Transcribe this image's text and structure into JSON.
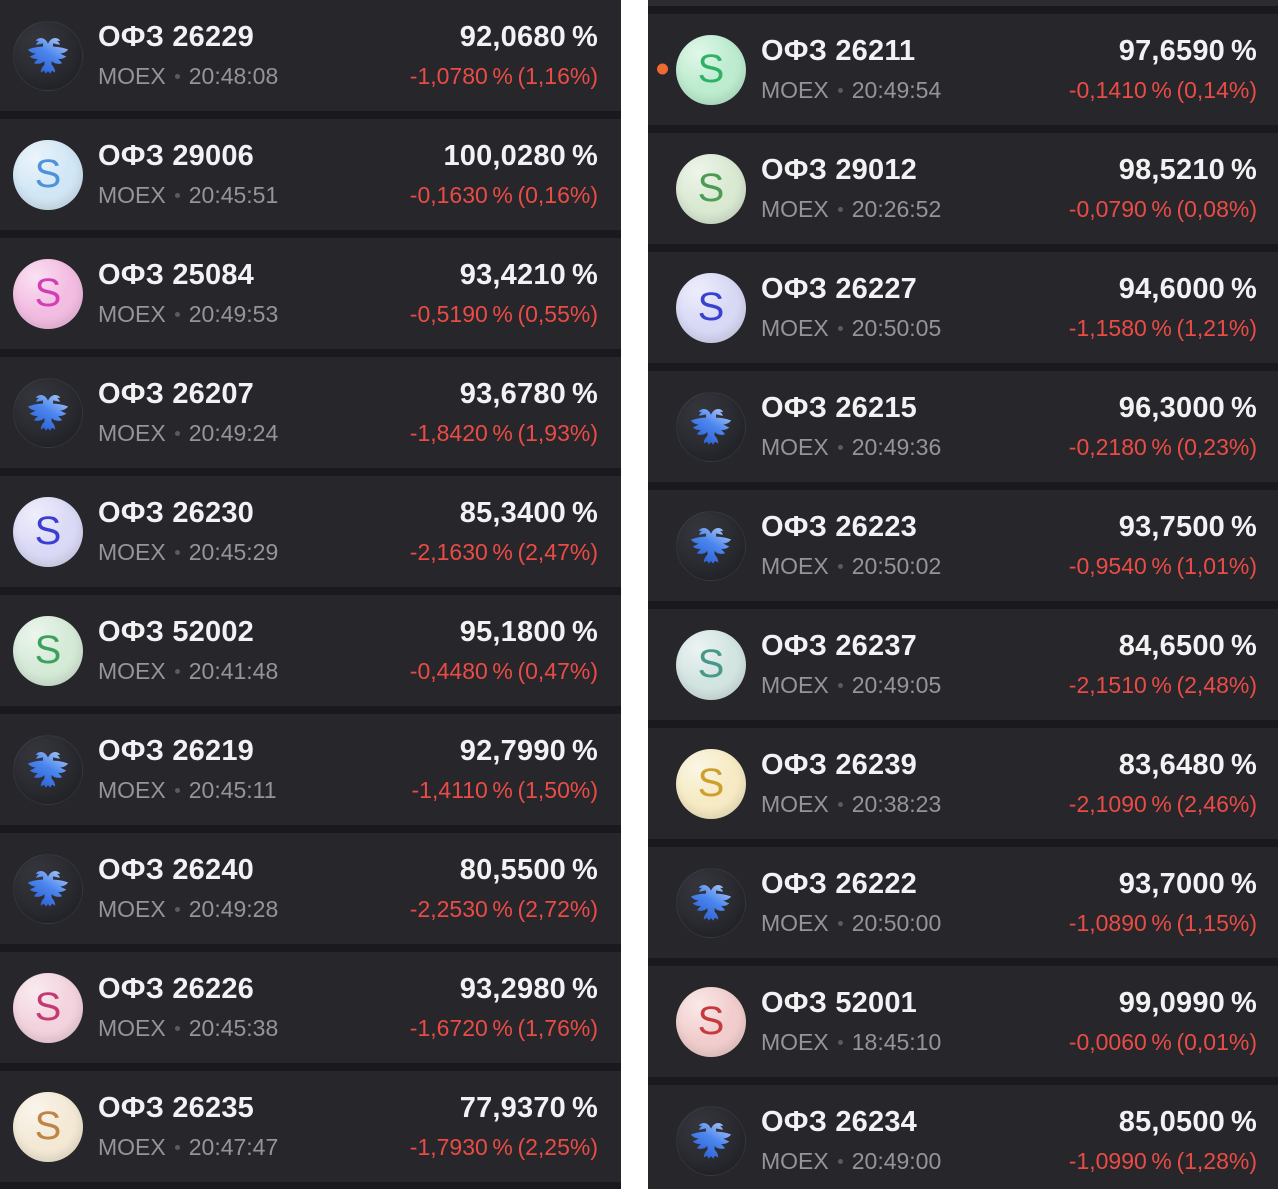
{
  "ui": {
    "colors": {
      "divider": "#ffffff",
      "column-bg": "#1a1a1e",
      "row-bg": "#26262b",
      "title": "#f2f2f4",
      "subtitle": "#94949a",
      "price": "#f2f2f4",
      "change": "#ea4c45",
      "unread-dot": "#ed6a31"
    },
    "eagle_gradient": [
      "#2a5bd0",
      "#4b86ee",
      "#a9c6f9"
    ]
  },
  "columns": [
    {
      "side": "left",
      "top_sliver": false,
      "rows": [
        {
          "ticker": "ОФЗ 26229",
          "exchange": "MOEX",
          "time": "20:48:08",
          "price": "92,0680 %",
          "change": "-1,0780 % (1,16%)",
          "icon": {
            "type": "eagle"
          },
          "unread": false
        },
        {
          "ticker": "ОФЗ 29006",
          "exchange": "MOEX",
          "time": "20:45:51",
          "price": "100,0280 %",
          "change": "-0,1630 % (0,16%)",
          "icon": {
            "type": "letter",
            "letter": "S",
            "bg": "#d2e7f5",
            "fg": "#4e93d9"
          },
          "unread": false
        },
        {
          "ticker": "ОФЗ 25084",
          "exchange": "MOEX",
          "time": "20:49:53",
          "price": "93,4210 %",
          "change": "-0,5190 % (0,55%)",
          "icon": {
            "type": "letter",
            "letter": "S",
            "bg": "#f3bde2",
            "fg": "#d13eb5"
          },
          "unread": false
        },
        {
          "ticker": "ОФЗ 26207",
          "exchange": "MOEX",
          "time": "20:49:24",
          "price": "93,6780 %",
          "change": "-1,8420 % (1,93%)",
          "icon": {
            "type": "eagle"
          },
          "unread": false
        },
        {
          "ticker": "ОФЗ 26230",
          "exchange": "MOEX",
          "time": "20:45:29",
          "price": "85,3400 %",
          "change": "-2,1630 % (2,47%)",
          "icon": {
            "type": "letter",
            "letter": "S",
            "bg": "#dbdaf6",
            "fg": "#3a3fd1"
          },
          "unread": false
        },
        {
          "ticker": "ОФЗ 52002",
          "exchange": "MOEX",
          "time": "20:41:48",
          "price": "95,1800 %",
          "change": "-0,4480 % (0,47%)",
          "icon": {
            "type": "letter",
            "letter": "S",
            "bg": "#d5ead7",
            "fg": "#3ba25d"
          },
          "unread": false
        },
        {
          "ticker": "ОФЗ 26219",
          "exchange": "MOEX",
          "time": "20:45:11",
          "price": "92,7990 %",
          "change": "-1,4110 % (1,50%)",
          "icon": {
            "type": "eagle"
          },
          "unread": false
        },
        {
          "ticker": "ОФЗ 26240",
          "exchange": "MOEX",
          "time": "20:49:28",
          "price": "80,5500 %",
          "change": "-2,2530 % (2,72%)",
          "icon": {
            "type": "eagle"
          },
          "unread": false
        },
        {
          "ticker": "ОФЗ 26226",
          "exchange": "MOEX",
          "time": "20:45:38",
          "price": "93,2980 %",
          "change": "-1,6720 % (1,76%)",
          "icon": {
            "type": "letter",
            "letter": "S",
            "bg": "#f3d3de",
            "fg": "#c33a72"
          },
          "unread": false
        },
        {
          "ticker": "ОФЗ 26235",
          "exchange": "MOEX",
          "time": "20:47:47",
          "price": "77,9370 %",
          "change": "-1,7930 % (2,25%)",
          "icon": {
            "type": "letter",
            "letter": "S",
            "bg": "#f3e9d5",
            "fg": "#c08445"
          },
          "unread": false
        }
      ]
    },
    {
      "side": "right",
      "top_sliver": true,
      "rows": [
        {
          "ticker": "ОФЗ 26211",
          "exchange": "MOEX",
          "time": "20:49:54",
          "price": "97,6590 %",
          "change": "-0,1410 % (0,14%)",
          "icon": {
            "type": "letter",
            "letter": "S",
            "bg": "#bdeccf",
            "fg": "#2fb268"
          },
          "unread": true
        },
        {
          "ticker": "ОФЗ 29012",
          "exchange": "MOEX",
          "time": "20:26:52",
          "price": "98,5210 %",
          "change": "-0,0790 % (0,08%)",
          "icon": {
            "type": "letter",
            "letter": "S",
            "bg": "#d9e9d2",
            "fg": "#4c9c53"
          },
          "unread": false
        },
        {
          "ticker": "ОФЗ 26227",
          "exchange": "MOEX",
          "time": "20:50:05",
          "price": "94,6000 %",
          "change": "-1,1580 % (1,21%)",
          "icon": {
            "type": "letter",
            "letter": "S",
            "bg": "#d8d9f5",
            "fg": "#3742cf"
          },
          "unread": false
        },
        {
          "ticker": "ОФЗ 26215",
          "exchange": "MOEX",
          "time": "20:49:36",
          "price": "96,3000 %",
          "change": "-0,2180 % (0,23%)",
          "icon": {
            "type": "eagle"
          },
          "unread": false
        },
        {
          "ticker": "ОФЗ 26223",
          "exchange": "MOEX",
          "time": "20:50:02",
          "price": "93,7500 %",
          "change": "-0,9540 % (1,01%)",
          "icon": {
            "type": "eagle"
          },
          "unread": false
        },
        {
          "ticker": "ОФЗ 26237",
          "exchange": "MOEX",
          "time": "20:49:05",
          "price": "84,6500 %",
          "change": "-2,1510 % (2,48%)",
          "icon": {
            "type": "letter",
            "letter": "S",
            "bg": "#d3e5e1",
            "fg": "#47988b"
          },
          "unread": false
        },
        {
          "ticker": "ОФЗ 26239",
          "exchange": "MOEX",
          "time": "20:38:23",
          "price": "83,6480 %",
          "change": "-2,1090 % (2,46%)",
          "icon": {
            "type": "letter",
            "letter": "S",
            "bg": "#f6ebc4",
            "fg": "#cf9f2e"
          },
          "unread": false
        },
        {
          "ticker": "ОФЗ 26222",
          "exchange": "MOEX",
          "time": "20:50:00",
          "price": "93,7000 %",
          "change": "-1,0890 % (1,15%)",
          "icon": {
            "type": "eagle"
          },
          "unread": false
        },
        {
          "ticker": "ОФЗ 52001",
          "exchange": "MOEX",
          "time": "18:45:10",
          "price": "99,0990 %",
          "change": "-0,0060 % (0,01%)",
          "icon": {
            "type": "letter",
            "letter": "S",
            "bg": "#f1cecd",
            "fg": "#c53a3e"
          },
          "unread": false
        },
        {
          "ticker": "ОФЗ 26234",
          "exchange": "MOEX",
          "time": "20:49:00",
          "price": "85,0500 %",
          "change": "-1,0990 % (1,28%)",
          "icon": {
            "type": "eagle"
          },
          "unread": false
        }
      ]
    }
  ]
}
